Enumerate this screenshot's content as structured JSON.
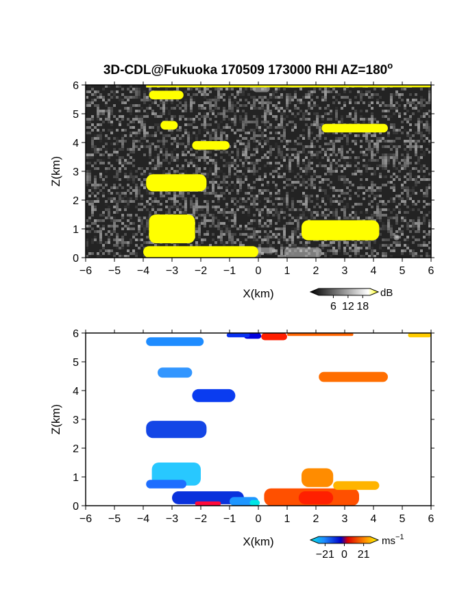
{
  "title": "3D-CDL@Fukuoka 170509 173000 RHI AZ=180",
  "title_superscript": "o",
  "chart_data": [
    {
      "type": "heatmap",
      "variable": "reflectivity",
      "xlabel": "X(km)",
      "ylabel": "Z(km)",
      "xlim": [
        -6,
        6
      ],
      "ylim": [
        0,
        6
      ],
      "xticks": [
        "-6",
        "-5",
        "-4",
        "-3",
        "-2",
        "-1",
        "0",
        "1",
        "2",
        "3",
        "4",
        "5",
        "6"
      ],
      "yticks": [
        "0",
        "1",
        "2",
        "3",
        "4",
        "5",
        "6"
      ],
      "background": "grayscale noise",
      "colorbar": {
        "unit": "dB",
        "ticks": [
          "6",
          "12",
          "18"
        ],
        "range": [
          0,
          21
        ]
      },
      "regions": [
        {
          "x": [
            -3.8,
            -2.6
          ],
          "y": [
            5.8,
            5.5
          ],
          "color": "#ffff00"
        },
        {
          "x": [
            -3.4,
            -2.8
          ],
          "y": [
            4.75,
            4.45
          ],
          "color": "#ffff00"
        },
        {
          "x": [
            2.2,
            4.5
          ],
          "y": [
            4.65,
            4.35
          ],
          "color": "#ffff00"
        },
        {
          "x": [
            -2.3,
            -1.0
          ],
          "y": [
            4.05,
            3.75
          ],
          "color": "#ffff00"
        },
        {
          "x": [
            -3.9,
            -1.8
          ],
          "y": [
            2.9,
            2.3
          ],
          "color": "#ffff00"
        },
        {
          "x": [
            -3.8,
            -2.2
          ],
          "y": [
            1.5,
            0.5
          ],
          "color": "#ffff00"
        },
        {
          "x": [
            1.5,
            4.2
          ],
          "y": [
            1.3,
            0.6
          ],
          "color": "#ffff00"
        },
        {
          "x": [
            -4.0,
            0.0
          ],
          "y": [
            0.4,
            0.0
          ],
          "color": "#ffff00"
        },
        {
          "x": [
            -3.9,
            6.0
          ],
          "y": [
            6.0,
            5.92
          ],
          "color": "#ffff00"
        }
      ]
    },
    {
      "type": "heatmap",
      "variable": "doppler velocity",
      "xlabel": "X(km)",
      "ylabel": "Z(km)",
      "xlim": [
        -6,
        6
      ],
      "ylim": [
        0,
        6
      ],
      "xticks": [
        "-6",
        "-5",
        "-4",
        "-3",
        "-2",
        "-1",
        "0",
        "1",
        "2",
        "3",
        "4",
        "5",
        "6"
      ],
      "yticks": [
        "0",
        "1",
        "2",
        "3",
        "4",
        "5",
        "6"
      ],
      "colorbar": {
        "unit": "ms",
        "unit_superscript": "−1",
        "ticks": [
          "−21",
          "0",
          "21"
        ],
        "range": [
          -28,
          28
        ]
      },
      "regions": [
        {
          "x": [
            -3.9,
            -1.9
          ],
          "y": [
            5.85,
            5.55
          ],
          "color": "#1e8cff"
        },
        {
          "x": [
            -3.5,
            -2.3
          ],
          "y": [
            4.8,
            4.45
          ],
          "color": "#3296ff"
        },
        {
          "x": [
            -2.3,
            -0.8
          ],
          "y": [
            4.05,
            3.6
          ],
          "color": "#0a3cf0"
        },
        {
          "x": [
            -3.9,
            -1.8
          ],
          "y": [
            2.95,
            2.35
          ],
          "color": "#1446e6"
        },
        {
          "x": [
            -3.7,
            -2.0
          ],
          "y": [
            1.5,
            0.7
          ],
          "color": "#28c8ff"
        },
        {
          "x": [
            -3.9,
            -2.5
          ],
          "y": [
            0.9,
            0.6
          ],
          "color": "#1e6eff"
        },
        {
          "x": [
            -3.0,
            -0.5
          ],
          "y": [
            0.5,
            0.05
          ],
          "color": "#0a32dc"
        },
        {
          "x": [
            -1.0,
            0.0
          ],
          "y": [
            0.3,
            0.0
          ],
          "color": "#1e96ff"
        },
        {
          "x": [
            -0.3,
            0.05
          ],
          "y": [
            0.2,
            0.0
          ],
          "color": "#00e6e6"
        },
        {
          "x": [
            -0.5,
            0.1
          ],
          "y": [
            6.0,
            5.8
          ],
          "color": "#0000dc"
        },
        {
          "x": [
            -1.1,
            -0.3
          ],
          "y": [
            6.0,
            5.85
          ],
          "color": "#0a32f0"
        },
        {
          "x": [
            0.1,
            1.0
          ],
          "y": [
            6.0,
            5.75
          ],
          "color": "#ff1e00"
        },
        {
          "x": [
            1.0,
            3.3
          ],
          "y": [
            6.0,
            5.9
          ],
          "color": "#ff6400"
        },
        {
          "x": [
            2.1,
            4.5
          ],
          "y": [
            4.65,
            4.3
          ],
          "color": "#ff6e00"
        },
        {
          "x": [
            5.2,
            6.0
          ],
          "y": [
            6.0,
            5.85
          ],
          "color": "#ffcc00"
        },
        {
          "x": [
            0.2,
            3.5
          ],
          "y": [
            0.6,
            0.0
          ],
          "color": "#ff5000"
        },
        {
          "x": [
            1.4,
            2.6
          ],
          "y": [
            0.5,
            0.05
          ],
          "color": "#ff2000"
        },
        {
          "x": [
            1.5,
            2.6
          ],
          "y": [
            1.3,
            0.65
          ],
          "color": "#ff8c00"
        },
        {
          "x": [
            2.6,
            4.2
          ],
          "y": [
            0.85,
            0.55
          ],
          "color": "#ffb400"
        },
        {
          "x": [
            -2.2,
            -1.3
          ],
          "y": [
            0.15,
            0.0
          ],
          "color": "#ff0a3c"
        }
      ]
    }
  ]
}
